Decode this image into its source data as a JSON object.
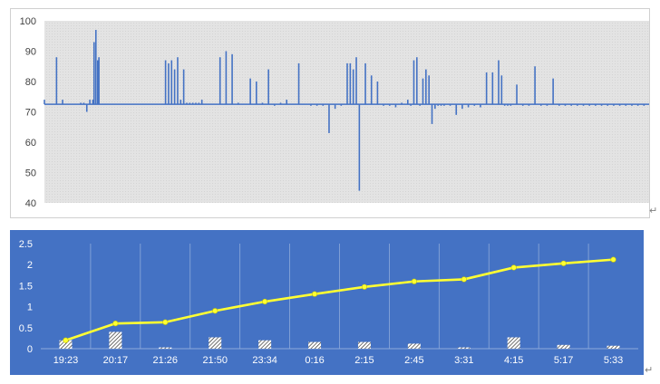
{
  "chart_data": [
    {
      "type": "line",
      "title": "",
      "xlabel": "",
      "ylabel": "",
      "ylim": [
        40,
        100
      ],
      "yticks": [
        40,
        50,
        60,
        70,
        80,
        90,
        100
      ],
      "grid": false,
      "legend": "none",
      "colors": {
        "series": "#4472c4",
        "plot_bg": "#e3e3e3",
        "hatch": "#d4d4d4"
      },
      "series": [
        {
          "baseline": 72.5,
          "x": [
            0,
            0.02,
            0.03,
            0.06,
            0.065,
            0.07,
            0.075,
            0.08,
            0.082,
            0.085,
            0.088,
            0.09,
            0.2,
            0.205,
            0.21,
            0.215,
            0.22,
            0.225,
            0.23,
            0.235,
            0.24,
            0.245,
            0.25,
            0.255,
            0.26,
            0.27,
            0.28,
            0.29,
            0.3,
            0.31,
            0.32,
            0.33,
            0.34,
            0.35,
            0.36,
            0.37,
            0.38,
            0.39,
            0.4,
            0.41,
            0.42,
            0.43,
            0.44,
            0.45,
            0.46,
            0.47,
            0.48,
            0.49,
            0.5,
            0.505,
            0.51,
            0.515,
            0.52,
            0.53,
            0.54,
            0.55,
            0.56,
            0.57,
            0.58,
            0.59,
            0.6,
            0.605,
            0.61,
            0.615,
            0.62,
            0.625,
            0.63,
            0.635,
            0.64,
            0.645,
            0.65,
            0.655,
            0.66,
            0.67,
            0.68,
            0.69,
            0.7,
            0.71,
            0.72,
            0.73,
            0.74,
            0.75,
            0.755,
            0.76,
            0.765,
            0.77,
            0.78,
            0.79,
            0.8,
            0.81,
            0.82,
            0.83,
            0.84,
            0.85,
            0.86,
            0.87,
            0.88,
            0.89,
            0.9,
            0.91,
            0.92,
            0.93,
            0.94,
            0.95,
            0.96,
            0.97,
            0.98,
            0.99,
            1.0
          ],
          "values": [
            74,
            88,
            74,
            73,
            73,
            70,
            74,
            74,
            93,
            97,
            87,
            88,
            87,
            86,
            87,
            84,
            88,
            74,
            84,
            73,
            73,
            73,
            73,
            73,
            74,
            72.5,
            72.5,
            88,
            90,
            89,
            73,
            72.5,
            81,
            80,
            73,
            84,
            72,
            73,
            74,
            72.5,
            86,
            72.5,
            72,
            72,
            72,
            63,
            71,
            72,
            86,
            86,
            84,
            88,
            44,
            86,
            82,
            80,
            72,
            72,
            71.5,
            73,
            74,
            72,
            87,
            88,
            72,
            81,
            84,
            82,
            66,
            71,
            72,
            72,
            72,
            72,
            69,
            71,
            71.5,
            72,
            71.5,
            83,
            83,
            87,
            82,
            72,
            72,
            72,
            79,
            72,
            72,
            85,
            72,
            72,
            81,
            72,
            72,
            72,
            72,
            72,
            72,
            72,
            72,
            72,
            72,
            72,
            72,
            72,
            72,
            72,
            72
          ]
        }
      ]
    },
    {
      "type": "bar+line",
      "title": "",
      "xlabel": "",
      "ylabel": "",
      "ylim": [
        0,
        2.5
      ],
      "yticks": [
        "0",
        "0.5",
        "1",
        "1.5",
        "2",
        "2.5"
      ],
      "categories": [
        "19:23",
        "20:17",
        "21:26",
        "21:50",
        "23:34",
        "0:16",
        "2:15",
        "2:45",
        "3:31",
        "4:15",
        "5:17",
        "5:33"
      ],
      "grid": true,
      "legend": "none",
      "colors": {
        "background": "#4472c4",
        "line": "#ffff33",
        "bar_fill": "#ffffff",
        "bar_hatch": "#1a1a1a",
        "grid": "#8eaadb",
        "axis_text": "#ffffff"
      },
      "series": [
        {
          "type": "bar",
          "values": [
            0.2,
            0.4,
            0.03,
            0.27,
            0.2,
            0.16,
            0.16,
            0.12,
            0.03,
            0.27,
            0.09,
            0.07
          ]
        },
        {
          "type": "line",
          "values": [
            0.2,
            0.6,
            0.63,
            0.9,
            1.12,
            1.3,
            1.47,
            1.6,
            1.65,
            1.93,
            2.03,
            2.12
          ]
        }
      ]
    }
  ]
}
